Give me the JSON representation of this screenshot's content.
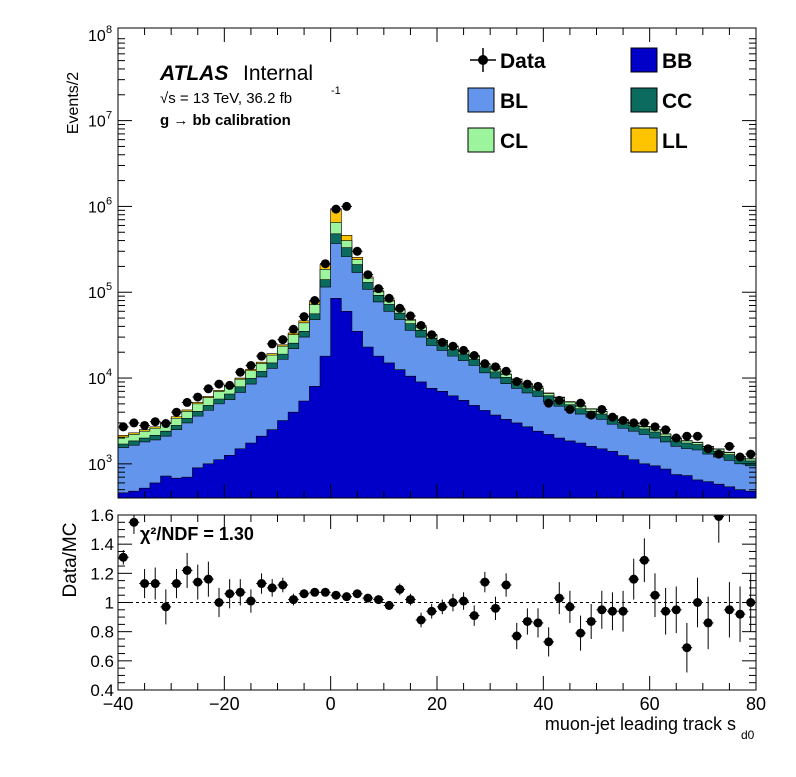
{
  "figure": {
    "atlas_label": "ATLAS",
    "atlas_status": "Internal",
    "energy_label": "√s = 13 TeV, 36.2 fb",
    "energy_sup": "-1",
    "calibration_label": "g → bb calibration",
    "chi2_label": "χ²/NDF = 1.30"
  },
  "colors": {
    "BB": "#0000c8",
    "BL": "#6495ed",
    "CC": "#0b6b5f",
    "CL": "#9cf59c",
    "LL": "#ffc400",
    "data": "#000000"
  },
  "chart_data": [
    {
      "type": "bar",
      "subtype": "stacked-histogram-with-data-points",
      "title": "",
      "xlabel": "",
      "ylabel": "Events/2",
      "yscale": "log",
      "xlim": [
        -40,
        80
      ],
      "ylim": [
        400,
        120000000
      ],
      "ytick_labels": [
        "10^3",
        "10^4",
        "10^5",
        "10^6",
        "10^7",
        "10^8"
      ],
      "legend_position": "top-right",
      "legend": [
        "Data",
        "BB",
        "BL",
        "CC",
        "CL",
        "LL"
      ],
      "bin_edges": [
        -40,
        -38,
        -36,
        -34,
        -32,
        -30,
        -28,
        -26,
        -24,
        -22,
        -20,
        -18,
        -16,
        -14,
        -12,
        -10,
        -8,
        -6,
        -4,
        -2,
        0,
        2,
        4,
        6,
        8,
        10,
        12,
        14,
        16,
        18,
        20,
        22,
        24,
        26,
        28,
        30,
        32,
        34,
        36,
        38,
        40,
        42,
        44,
        46,
        48,
        50,
        52,
        54,
        56,
        58,
        60,
        62,
        64,
        66,
        68,
        70,
        72,
        74,
        76,
        78,
        80
      ],
      "stack_order": [
        "BB",
        "BL",
        "CC",
        "CL",
        "LL"
      ],
      "stack_cumulative_tops": {
        "BB": [
          460,
          480,
          520,
          600,
          720,
          680,
          700,
          900,
          1000,
          1120,
          1260,
          1500,
          1750,
          2100,
          2500,
          3200,
          4000,
          5400,
          8000,
          18000,
          85000,
          60000,
          35000,
          23000,
          18000,
          15000,
          12500,
          10500,
          9000,
          7600,
          7000,
          6200,
          5500,
          4800,
          4200,
          3700,
          3300,
          3000,
          2700,
          2400,
          2200,
          2000,
          1850,
          1750,
          1600,
          1500,
          1400,
          1250,
          1120,
          1000,
          950,
          870,
          750,
          730,
          650,
          620,
          580,
          540,
          500,
          480
        ],
        "BL": [
          1550,
          1650,
          1800,
          1900,
          2100,
          2500,
          3000,
          3600,
          4200,
          5000,
          5600,
          6800,
          8500,
          10300,
          13000,
          16500,
          22000,
          30000,
          48000,
          115000,
          370000,
          260000,
          170000,
          108000,
          77000,
          60000,
          48000,
          36000,
          30000,
          24000,
          21000,
          18000,
          16000,
          14000,
          11500,
          10000,
          8600,
          7600,
          6700,
          6100,
          5300,
          4700,
          4200,
          3800,
          3500,
          3300,
          2900,
          2600,
          2400,
          2200,
          2000,
          1800,
          1600,
          1500,
          1450,
          1300,
          1200,
          1100,
          1000,
          950
        ],
        "CC": [
          1700,
          1850,
          2000,
          2150,
          2400,
          2800,
          3400,
          4100,
          4800,
          5700,
          6500,
          7900,
          9900,
          12000,
          15000,
          19000,
          25500,
          35000,
          56000,
          140000,
          480000,
          330000,
          210000,
          130000,
          92000,
          72000,
          57000,
          43000,
          36000,
          29000,
          25000,
          21500,
          19000,
          16500,
          13500,
          11800,
          10200,
          8900,
          7900,
          7100,
          6200,
          5500,
          4900,
          4400,
          4100,
          3800,
          3400,
          3050,
          2800,
          2550,
          2350,
          2100,
          1850,
          1750,
          1680,
          1500,
          1400,
          1280,
          1150,
          1080
        ],
        "CL": [
          2050,
          2200,
          2400,
          2600,
          2950,
          3400,
          4100,
          5000,
          5900,
          7000,
          8000,
          9700,
          12200,
          14800,
          18500,
          23500,
          32000,
          44000,
          72000,
          185000,
          650000,
          400000,
          240000,
          146000,
          101000,
          79000,
          62000,
          47000,
          39000,
          31500,
          27000,
          23200,
          20500,
          17800,
          14500,
          12700,
          11000,
          9600,
          8500,
          7600,
          6600,
          5900,
          5250,
          4700,
          4350,
          4050,
          3600,
          3250,
          2950,
          2700,
          2480,
          2220,
          1960,
          1850,
          1770,
          1580,
          1480,
          1350,
          1210,
          1140
        ],
        "LL": [
          2150,
          2300,
          2500,
          2700,
          3050,
          3550,
          4250,
          5200,
          6100,
          7200,
          8250,
          10000,
          12600,
          15300,
          19200,
          24400,
          33500,
          46500,
          78000,
          210000,
          940000,
          460000,
          255000,
          151000,
          104000,
          81000,
          63500,
          48000,
          40000,
          32200,
          27500,
          23600,
          20900,
          18100,
          14700,
          12900,
          11150,
          9750,
          8600,
          7700,
          6700,
          6000,
          5320,
          4760,
          4400,
          4100,
          3640,
          3290,
          2990,
          2730,
          2500,
          2240,
          1980,
          1870,
          1790,
          1600,
          1500,
          1370,
          1220,
          1150
        ]
      },
      "data_points": {
        "x": [
          -39,
          -37,
          -35,
          -33,
          -31,
          -29,
          -27,
          -25,
          -23,
          -21,
          -19,
          -17,
          -15,
          -13,
          -11,
          -9,
          -7,
          -5,
          -3,
          -1,
          1,
          3,
          5,
          7,
          9,
          11,
          13,
          15,
          17,
          19,
          21,
          23,
          25,
          27,
          29,
          31,
          33,
          35,
          37,
          39,
          41,
          43,
          45,
          47,
          49,
          51,
          53,
          55,
          57,
          59,
          61,
          63,
          65,
          67,
          69,
          71,
          73,
          75,
          77,
          79
        ],
        "y": [
          2700,
          3000,
          2800,
          3100,
          2950,
          4000,
          5200,
          6000,
          7500,
          8500,
          8200,
          11700,
          14000,
          18000,
          25000,
          28000,
          37000,
          52000,
          80000,
          215000,
          930000,
          1000000,
          300000,
          160000,
          110000,
          85000,
          65000,
          53000,
          41000,
          32000,
          26000,
          23500,
          21000,
          18300,
          14700,
          13500,
          12000,
          9100,
          8500,
          8000,
          5100,
          5500,
          4300,
          5100,
          3700,
          4300,
          3500,
          3200,
          3000,
          3000,
          2700,
          2500,
          2000,
          2100,
          2100,
          1500,
          1300,
          1600,
          1200,
          1300
        ]
      }
    },
    {
      "type": "scatter",
      "subtype": "ratio-with-error-bars",
      "title": "",
      "xlabel": "muon-jet leading track s_d0",
      "ylabel": "Data/MC",
      "xlim": [
        -40,
        80
      ],
      "ylim": [
        0.4,
        1.6
      ],
      "xticks": [
        -40,
        -20,
        0,
        20,
        40,
        60,
        80
      ],
      "yticks": [
        0.4,
        0.6,
        0.8,
        1,
        1.2,
        1.4,
        1.6
      ],
      "reference_line": 1.0,
      "x": [
        -39,
        -37,
        -35,
        -33,
        -31,
        -29,
        -27,
        -25,
        -23,
        -21,
        -19,
        -17,
        -15,
        -13,
        -11,
        -9,
        -7,
        -5,
        -3,
        -1,
        1,
        3,
        5,
        7,
        9,
        11,
        13,
        15,
        17,
        19,
        21,
        23,
        25,
        27,
        29,
        31,
        33,
        35,
        37,
        39,
        41,
        43,
        45,
        47,
        49,
        51,
        53,
        55,
        57,
        59,
        61,
        63,
        65,
        67,
        69,
        71,
        73,
        75,
        77,
        79
      ],
      "y": [
        1.31,
        1.55,
        1.13,
        1.13,
        0.97,
        1.13,
        1.22,
        1.14,
        1.16,
        1.0,
        1.06,
        1.07,
        1.01,
        1.13,
        1.1,
        1.12,
        1.02,
        1.06,
        1.07,
        1.07,
        1.05,
        1.04,
        1.06,
        1.03,
        1.02,
        0.98,
        1.09,
        1.02,
        0.88,
        0.94,
        0.97,
        1.0,
        1.01,
        0.91,
        1.14,
        0.96,
        1.12,
        0.77,
        0.87,
        0.86,
        0.73,
        1.03,
        0.97,
        0.79,
        0.87,
        0.95,
        0.94,
        0.94,
        1.16,
        1.29,
        1.05,
        0.94,
        0.95,
        0.69,
        1.0,
        0.86,
        1.59,
        0.95,
        0.92,
        1.0
      ],
      "yerr": [
        0.05,
        0.08,
        0.1,
        0.11,
        0.12,
        0.1,
        0.12,
        0.12,
        0.12,
        0.1,
        0.1,
        0.09,
        0.08,
        0.07,
        0.06,
        0.05,
        0.04,
        0.03,
        0.02,
        0.01,
        0.01,
        0.01,
        0.02,
        0.02,
        0.03,
        0.03,
        0.04,
        0.04,
        0.05,
        0.05,
        0.05,
        0.06,
        0.06,
        0.07,
        0.07,
        0.08,
        0.08,
        0.09,
        0.09,
        0.1,
        0.1,
        0.11,
        0.11,
        0.12,
        0.12,
        0.13,
        0.13,
        0.14,
        0.14,
        0.15,
        0.15,
        0.16,
        0.16,
        0.17,
        0.17,
        0.18,
        0.18,
        0.19,
        0.19,
        0.2
      ]
    }
  ]
}
